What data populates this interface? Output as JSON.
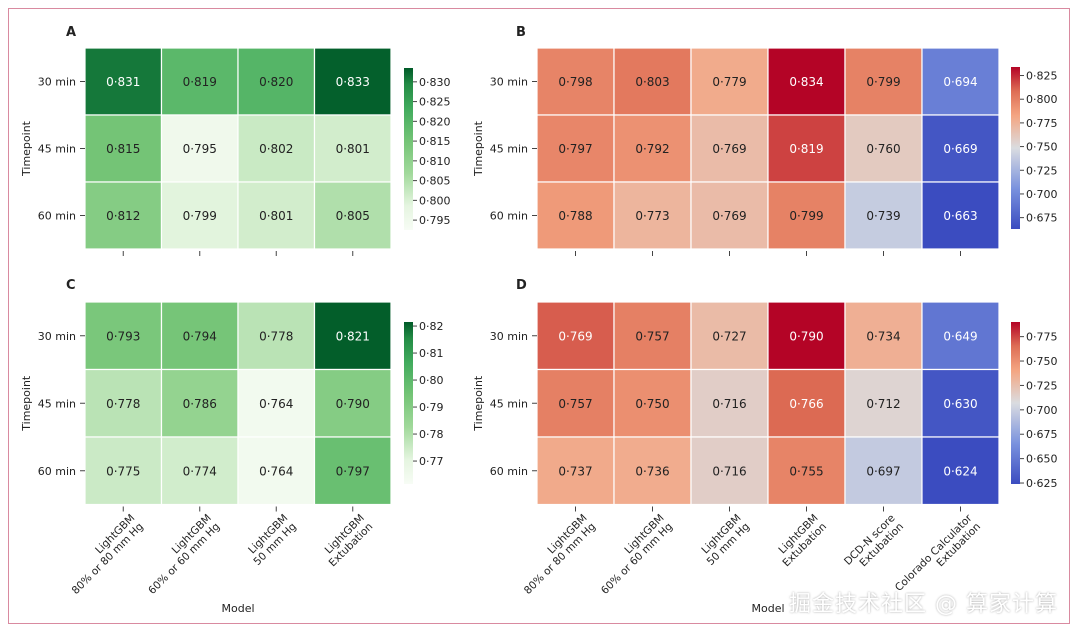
{
  "watermark": "掘金技术社区 @ 算家计算",
  "chart_data": [
    {
      "panel": "A",
      "type": "heatmap",
      "rows": [
        "30 min",
        "45 min",
        "60 min"
      ],
      "cols": [
        "LightGBM\n80% or 80 mm Hg",
        "LightGBM\n60% or 60 mm Hg",
        "LightGBM\n50 mm Hg",
        "LightGBM\nExtubation"
      ],
      "values": [
        [
          0.831,
          0.819,
          0.82,
          0.833
        ],
        [
          0.815,
          0.795,
          0.802,
          0.801
        ],
        [
          0.812,
          0.799,
          0.801,
          0.805
        ]
      ],
      "labels": [
        [
          "0·831",
          "0·819",
          "0·820",
          "0·833"
        ],
        [
          "0·815",
          "0·795",
          "0·802",
          "0·801"
        ],
        [
          "0·812",
          "0·799",
          "0·801",
          "0·805"
        ]
      ],
      "ylabel": "Timepoint",
      "xlabel": "",
      "colormap": "greens",
      "vmin": 0.7925,
      "vmax": 0.8335,
      "cbar_ticks": [
        "0·830",
        "0·825",
        "0·820",
        "0·815",
        "0·810",
        "0·805",
        "0·800",
        "0·795"
      ],
      "cbar_values": [
        0.83,
        0.825,
        0.82,
        0.815,
        0.81,
        0.805,
        0.8,
        0.795
      ]
    },
    {
      "panel": "B",
      "type": "heatmap",
      "rows": [
        "30 min",
        "45 min",
        "60 min"
      ],
      "cols": [
        "LightGBM\n80% or 80 mm Hg",
        "LightGBM\n60% or 60 mm Hg",
        "LightGBM\n50 mm Hg",
        "LightGBM\nExtubation",
        "DCD-N score\nExtubation",
        "Colorado Calculator\nExtubation"
      ],
      "values": [
        [
          0.798,
          0.803,
          0.779,
          0.834,
          0.799,
          0.694
        ],
        [
          0.797,
          0.792,
          0.769,
          0.819,
          0.76,
          0.669
        ],
        [
          0.788,
          0.773,
          0.769,
          0.799,
          0.739,
          0.663
        ]
      ],
      "labels": [
        [
          "0·798",
          "0·803",
          "0·779",
          "0·834",
          "0·799",
          "0·694"
        ],
        [
          "0·797",
          "0·792",
          "0·769",
          "0·819",
          "0·760",
          "0·669"
        ],
        [
          "0·788",
          "0·773",
          "0·769",
          "0·799",
          "0·739",
          "0·663"
        ]
      ],
      "ylabel": "Timepoint",
      "xlabel": "",
      "colormap": "coolwarm",
      "vmin": 0.663,
      "vmax": 0.834,
      "cbar_ticks": [
        "0·825",
        "0·800",
        "0·775",
        "0·750",
        "0·725",
        "0·700",
        "0·675"
      ],
      "cbar_values": [
        0.825,
        0.8,
        0.775,
        0.75,
        0.725,
        0.7,
        0.675
      ]
    },
    {
      "panel": "C",
      "type": "heatmap",
      "rows": [
        "30 min",
        "45 min",
        "60 min"
      ],
      "cols": [
        "LightGBM\n80% or 80 mm Hg",
        "LightGBM\n60% or 60 mm Hg",
        "LightGBM\n50 mm Hg",
        "LightGBM\nExtubation"
      ],
      "values": [
        [
          0.793,
          0.794,
          0.778,
          0.821
        ],
        [
          0.778,
          0.786,
          0.764,
          0.79
        ],
        [
          0.775,
          0.774,
          0.764,
          0.797
        ]
      ],
      "labels": [
        [
          "0·793",
          "0·794",
          "0·778",
          "0·821"
        ],
        [
          "0·778",
          "0·786",
          "0·764",
          "0·790"
        ],
        [
          "0·775",
          "0·774",
          "0·764",
          "0·797"
        ]
      ],
      "ylabel": "Timepoint",
      "xlabel": "Model",
      "colormap": "greens",
      "vmin": 0.7615,
      "vmax": 0.8215,
      "cbar_ticks": [
        "0·82",
        "0·81",
        "0·80",
        "0·79",
        "0·78",
        "0·77"
      ],
      "cbar_values": [
        0.82,
        0.81,
        0.8,
        0.79,
        0.78,
        0.77
      ]
    },
    {
      "panel": "D",
      "type": "heatmap",
      "rows": [
        "30 min",
        "45 min",
        "60 min"
      ],
      "cols": [
        "LightGBM\n80% or 80 mm Hg",
        "LightGBM\n60% or 60 mm Hg",
        "LightGBM\n50 mm Hg",
        "LightGBM\nExtubation",
        "DCD-N score\nExtubation",
        "Colorado Calculator\nExtubation"
      ],
      "values": [
        [
          0.769,
          0.757,
          0.727,
          0.79,
          0.734,
          0.649
        ],
        [
          0.757,
          0.75,
          0.716,
          0.766,
          0.712,
          0.63
        ],
        [
          0.737,
          0.736,
          0.716,
          0.755,
          0.697,
          0.624
        ]
      ],
      "labels": [
        [
          "0·769",
          "0·757",
          "0·727",
          "0·790",
          "0·734",
          "0·649"
        ],
        [
          "0·757",
          "0·750",
          "0·716",
          "0·766",
          "0·712",
          "0·630"
        ],
        [
          "0·737",
          "0·736",
          "0·716",
          "0·755",
          "0·697",
          "0·624"
        ]
      ],
      "ylabel": "Timepoint",
      "xlabel": "Model",
      "colormap": "coolwarm",
      "vmin": 0.624,
      "vmax": 0.79,
      "cbar_ticks": [
        "0·775",
        "0·750",
        "0·725",
        "0·700",
        "0·675",
        "0·650",
        "0·625"
      ],
      "cbar_values": [
        0.775,
        0.75,
        0.725,
        0.7,
        0.675,
        0.65,
        0.625
      ]
    }
  ]
}
